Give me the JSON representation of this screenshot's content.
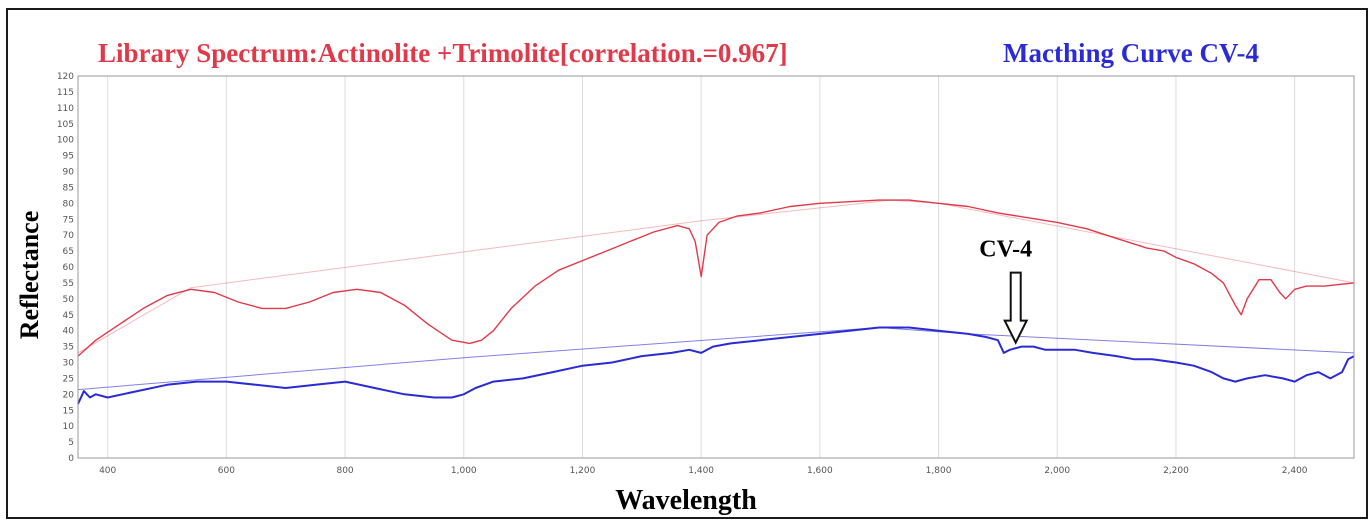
{
  "chart_data": {
    "type": "line",
    "title_left": "Library Spectrum:Actinolite +Trimolite[correlation.=0.967]",
    "title_right": "Macthing Curve CV-4",
    "xlabel": "Wavelength",
    "ylabel": "Reflectance",
    "xlim": [
      350,
      2500
    ],
    "ylim": [
      0,
      120
    ],
    "x_ticks": [
      400,
      600,
      800,
      1000,
      1200,
      1400,
      1600,
      1800,
      2000,
      2200,
      2400
    ],
    "x_tick_labels": [
      "400",
      "600",
      "800",
      "1,000",
      "1,200",
      "1,400",
      "1,600",
      "1,800",
      "2,000",
      "2,200",
      "2,400"
    ],
    "y_ticks": [
      0,
      5,
      10,
      15,
      20,
      25,
      30,
      35,
      40,
      45,
      50,
      55,
      60,
      65,
      70,
      75,
      80,
      85,
      90,
      95,
      100,
      105,
      110,
      115,
      120
    ],
    "grid": "vertical",
    "annotation": {
      "text": "CV-4",
      "x": 1930,
      "y": 35
    },
    "colors": {
      "library": "#e03a4a",
      "match": "#2b2bd6",
      "frame": "#1a1a1a"
    },
    "series": [
      {
        "key": "library",
        "x": [
          350,
          380,
          420,
          460,
          500,
          540,
          580,
          620,
          660,
          700,
          740,
          780,
          820,
          860,
          900,
          940,
          980,
          1010,
          1030,
          1050,
          1080,
          1120,
          1160,
          1200,
          1240,
          1280,
          1320,
          1360,
          1380,
          1390,
          1400,
          1410,
          1430,
          1460,
          1500,
          1550,
          1600,
          1650,
          1700,
          1750,
          1800,
          1850,
          1900,
          1950,
          2000,
          2050,
          2100,
          2150,
          2180,
          2200,
          2230,
          2260,
          2280,
          2300,
          2310,
          2320,
          2340,
          2360,
          2375,
          2385,
          2400,
          2420,
          2450,
          2500
        ],
        "y": [
          32,
          37,
          42,
          47,
          51,
          53,
          52,
          49,
          47,
          47,
          49,
          52,
          53,
          52,
          48,
          42,
          37,
          36,
          37,
          40,
          47,
          54,
          59,
          62,
          65,
          68,
          71,
          73,
          72,
          68,
          57,
          70,
          74,
          76,
          77,
          79,
          80,
          80.5,
          81,
          81,
          80,
          79,
          77,
          75.5,
          74,
          72,
          69,
          66,
          65,
          63,
          61,
          58,
          55,
          48,
          45,
          50,
          56,
          56,
          52,
          50,
          53,
          54,
          54,
          55
        ]
      },
      {
        "key": "library_hull",
        "x": [
          350,
          540,
          1400,
          1720,
          1800,
          2500
        ],
        "y": [
          33,
          53.5,
          74.5,
          81,
          80,
          55
        ]
      },
      {
        "key": "match",
        "x": [
          350,
          360,
          370,
          380,
          400,
          450,
          500,
          550,
          600,
          650,
          700,
          750,
          800,
          850,
          900,
          950,
          980,
          1000,
          1020,
          1050,
          1100,
          1150,
          1200,
          1250,
          1300,
          1350,
          1380,
          1400,
          1420,
          1450,
          1500,
          1550,
          1600,
          1650,
          1700,
          1750,
          1800,
          1850,
          1880,
          1900,
          1910,
          1920,
          1940,
          1960,
          1980,
          2000,
          2030,
          2060,
          2100,
          2130,
          2160,
          2200,
          2230,
          2260,
          2280,
          2300,
          2320,
          2350,
          2380,
          2400,
          2420,
          2440,
          2460,
          2480,
          2490,
          2500
        ],
        "y": [
          17,
          21,
          19,
          20,
          19,
          21,
          23,
          24,
          24,
          23,
          22,
          23,
          24,
          22,
          20,
          19,
          19,
          20,
          22,
          24,
          25,
          27,
          29,
          30,
          32,
          33,
          34,
          33,
          35,
          36,
          37,
          38,
          39,
          40,
          41,
          41,
          40,
          39,
          38,
          37,
          33,
          34,
          35,
          35,
          34,
          34,
          34,
          33,
          32,
          31,
          31,
          30,
          29,
          27,
          25,
          24,
          25,
          26,
          25,
          24,
          26,
          27,
          25,
          27,
          31,
          32
        ]
      },
      {
        "key": "match_hull",
        "x": [
          350,
          1000,
          1700,
          1850,
          2500
        ],
        "y": [
          21.5,
          31.5,
          41,
          39,
          33
        ]
      }
    ]
  }
}
